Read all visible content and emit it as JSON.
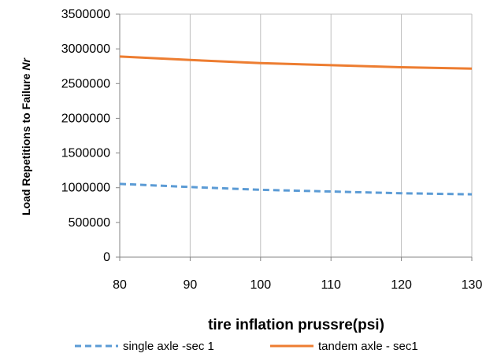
{
  "chart_data": {
    "type": "line",
    "xlabel": "tire inflation prussre(psi)",
    "ylabel_main": "Load Repetitions to Failure ",
    "ylabel_italic": "Nr",
    "x": [
      80,
      90,
      100,
      110,
      120,
      130
    ],
    "xlim": [
      80,
      130
    ],
    "ylim": [
      0,
      3500000
    ],
    "x_ticks": [
      80,
      90,
      100,
      110,
      120,
      130
    ],
    "y_ticks": [
      0,
      500000,
      1000000,
      1500000,
      2000000,
      2500000,
      3000000,
      3500000
    ],
    "grid": "vertical",
    "legend_position": "bottom",
    "series": [
      {
        "name": "single axle -sec 1",
        "color": "#5b9bd5",
        "style": "dashed",
        "values": [
          1055000,
          1010000,
          970000,
          945000,
          920000,
          905000
        ]
      },
      {
        "name": "tandem axle - sec1",
        "color": "#ed7d31",
        "style": "solid",
        "values": [
          2890000,
          2840000,
          2795000,
          2765000,
          2735000,
          2715000
        ]
      }
    ]
  }
}
